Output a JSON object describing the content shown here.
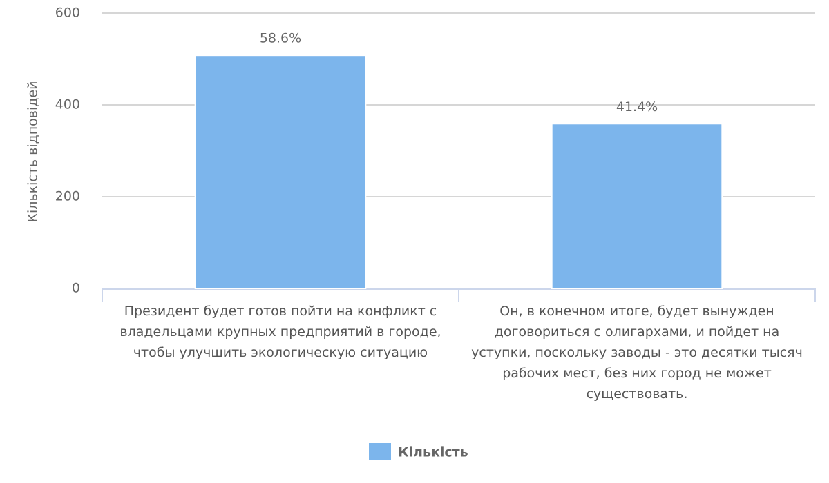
{
  "chart_data": {
    "type": "bar",
    "y_axis_title": "Кількість відповідей",
    "categories": [
      "Президент будет готов пойти на конфликт с владельцами крупных предприятий в городе, чтобы улучшить экологическую ситуацию",
      "Он, в конечном итоге, будет вынужден договориться с олигархами, и пойдет на уступки, поскольку заводы - это десятки тысяч рабочих мест, без них город не может существовать."
    ],
    "series": [
      {
        "name": "Кількість",
        "color": "#7cb5ec",
        "values": [
          508,
          359
        ],
        "value_labels": [
          "58.6%",
          "41.4%"
        ]
      }
    ],
    "ylim": [
      0,
      600
    ],
    "yticks": [
      0,
      200,
      400,
      600
    ],
    "grid": true,
    "legend": "bottom"
  }
}
